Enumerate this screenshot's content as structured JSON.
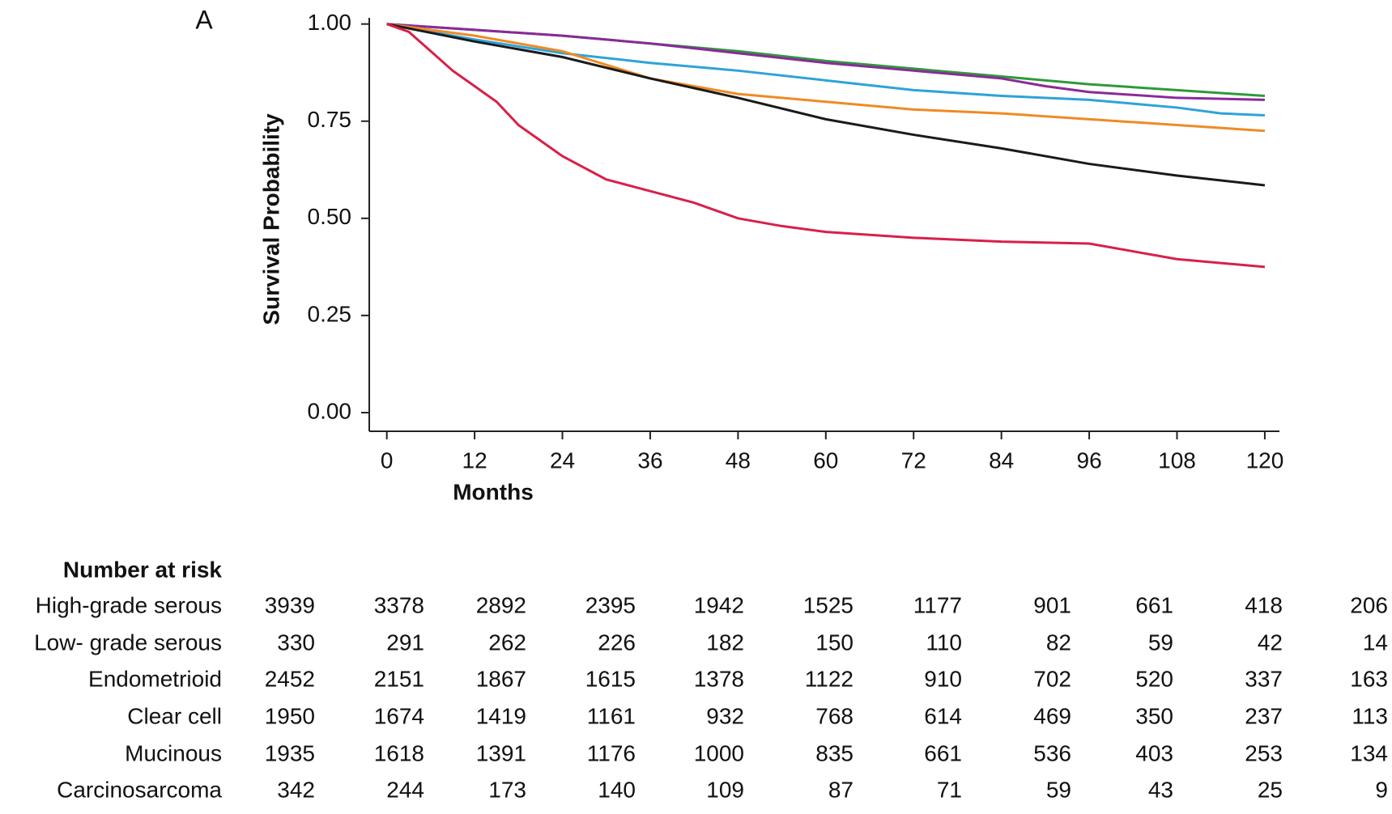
{
  "chart_data": {
    "type": "line",
    "panel_label": "A",
    "x_label": "Months",
    "y_label": "Survival Probability",
    "xlim": [
      -2.4,
      122
    ],
    "ylim": [
      -0.048,
      1.016
    ],
    "xticks": [
      0,
      12,
      24,
      36,
      48,
      60,
      72,
      84,
      96,
      108,
      120
    ],
    "yticks": [
      {
        "value": 0,
        "label": "0.00"
      },
      0.25,
      {
        "value": 0.5,
        "label": "0.50"
      },
      0.75,
      {
        "value": 1,
        "label": "1.00"
      }
    ],
    "series": [
      {
        "color": "#2e9a3a",
        "x": [
          0,
          12,
          24,
          36,
          48,
          60,
          72,
          84,
          96,
          108,
          120
        ],
        "values": [
          1,
          0.985,
          0.97,
          0.95,
          0.93,
          0.905,
          0.885,
          0.865,
          0.845,
          0.83,
          0.815
        ]
      },
      {
        "color": "#8a2a9a",
        "x": [
          0,
          12,
          24,
          36,
          48,
          60,
          72,
          84,
          90,
          96,
          108,
          120
        ],
        "values": [
          1,
          0.985,
          0.97,
          0.95,
          0.925,
          0.9,
          0.88,
          0.86,
          0.84,
          0.825,
          0.81,
          0.805
        ]
      },
      {
        "color": "#2ea3d8",
        "x": [
          0,
          12,
          24,
          36,
          48,
          60,
          72,
          84,
          96,
          108,
          114,
          120
        ],
        "values": [
          1,
          0.96,
          0.925,
          0.9,
          0.88,
          0.855,
          0.83,
          0.815,
          0.805,
          0.785,
          0.77,
          0.765
        ]
      },
      {
        "color": "#f08a24",
        "x": [
          0,
          12,
          24,
          36,
          48,
          60,
          72,
          84,
          96,
          108,
          120
        ],
        "values": [
          1,
          0.97,
          0.93,
          0.86,
          0.82,
          0.8,
          0.78,
          0.77,
          0.755,
          0.74,
          0.725
        ]
      },
      {
        "color": "#1a1a1a",
        "x": [
          0,
          12,
          24,
          36,
          48,
          60,
          72,
          84,
          96,
          108,
          120
        ],
        "values": [
          1,
          0.955,
          0.915,
          0.86,
          0.81,
          0.755,
          0.715,
          0.68,
          0.64,
          0.61,
          0.585
        ]
      },
      {
        "color": "#d8204a",
        "x": [
          0,
          3,
          6,
          9,
          12,
          15,
          18,
          21,
          24,
          30,
          36,
          42,
          48,
          54,
          60,
          72,
          84,
          96,
          108,
          120
        ],
        "values": [
          1,
          0.98,
          0.93,
          0.88,
          0.84,
          0.8,
          0.74,
          0.7,
          0.66,
          0.6,
          0.57,
          0.54,
          0.5,
          0.48,
          0.465,
          0.45,
          0.44,
          0.435,
          0.395,
          0.375
        ]
      }
    ],
    "risk_table": {
      "title": "Number at risk",
      "rows": [
        {
          "label": "High-grade serous",
          "values": [
            3939,
            3378,
            2892,
            2395,
            1942,
            1525,
            1177,
            901,
            661,
            418,
            206
          ]
        },
        {
          "label": "Low- grade serous",
          "values": [
            330,
            291,
            262,
            226,
            182,
            150,
            110,
            82,
            59,
            42,
            14
          ]
        },
        {
          "label": "Endometrioid",
          "values": [
            2452,
            2151,
            1867,
            1615,
            1378,
            1122,
            910,
            702,
            520,
            337,
            163
          ]
        },
        {
          "label": "Clear cell",
          "values": [
            1950,
            1674,
            1419,
            1161,
            932,
            768,
            614,
            469,
            350,
            237,
            113
          ]
        },
        {
          "label": "Mucinous",
          "values": [
            1935,
            1618,
            1391,
            1176,
            1000,
            835,
            661,
            536,
            403,
            253,
            134
          ]
        },
        {
          "label": "Carcinosarcoma",
          "values": [
            342,
            244,
            173,
            140,
            109,
            87,
            71,
            59,
            43,
            25,
            9
          ]
        }
      ]
    }
  }
}
